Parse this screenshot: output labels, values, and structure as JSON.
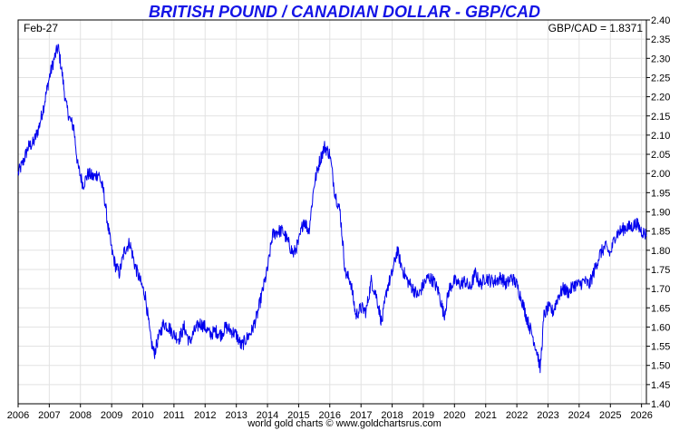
{
  "chart_data": {
    "type": "line",
    "title": "BRITISH POUND / CANADIAN DOLLAR - GBP/CAD",
    "date_label": "Feb-27",
    "current_value_label": "GBP/CAD = 1.8371",
    "xlabel": "",
    "ylabel": "",
    "x_tick_labels": [
      "2006",
      "2007",
      "2008",
      "2009",
      "2010",
      "2011",
      "2012",
      "2013",
      "2014",
      "2015",
      "2016",
      "2017",
      "2018",
      "2019",
      "2020",
      "2021",
      "2022",
      "2023",
      "2024",
      "2025",
      "2026"
    ],
    "y_tick_labels": [
      "1.40",
      "1.45",
      "1.50",
      "1.55",
      "1.60",
      "1.65",
      "1.70",
      "1.75",
      "1.80",
      "1.85",
      "1.90",
      "1.95",
      "2.00",
      "2.05",
      "2.10",
      "2.15",
      "2.20",
      "2.25",
      "2.30",
      "2.35",
      "2.40"
    ],
    "xlim": [
      "2006-01-01",
      "2026-02-27"
    ],
    "ylim": [
      1.4,
      2.4
    ],
    "grid": true,
    "line_color": "#0000ee",
    "series": [
      {
        "values": [
          [
            "2006-01-01",
            2.0
          ],
          [
            "2006-03-01",
            2.03
          ],
          [
            "2006-05-01",
            2.07
          ],
          [
            "2006-07-01",
            2.08
          ],
          [
            "2006-09-01",
            2.12
          ],
          [
            "2006-11-01",
            2.18
          ],
          [
            "2007-01-01",
            2.25
          ],
          [
            "2007-03-01",
            2.3
          ],
          [
            "2007-04-15",
            2.33
          ],
          [
            "2007-06-01",
            2.26
          ],
          [
            "2007-07-15",
            2.18
          ],
          [
            "2007-09-01",
            2.14
          ],
          [
            "2007-10-15",
            2.12
          ],
          [
            "2007-12-01",
            2.02
          ],
          [
            "2008-02-01",
            1.97
          ],
          [
            "2008-04-01",
            2.0
          ],
          [
            "2008-06-01",
            1.99
          ],
          [
            "2008-08-01",
            2.0
          ],
          [
            "2008-10-01",
            1.95
          ],
          [
            "2008-11-15",
            1.87
          ],
          [
            "2009-01-01",
            1.8
          ],
          [
            "2009-02-15",
            1.76
          ],
          [
            "2009-04-01",
            1.74
          ],
          [
            "2009-06-01",
            1.8
          ],
          [
            "2009-08-01",
            1.82
          ],
          [
            "2009-10-01",
            1.76
          ],
          [
            "2009-12-01",
            1.72
          ],
          [
            "2010-02-01",
            1.68
          ],
          [
            "2010-04-01",
            1.57
          ],
          [
            "2010-05-15",
            1.53
          ],
          [
            "2010-07-01",
            1.57
          ],
          [
            "2010-09-01",
            1.61
          ],
          [
            "2010-11-01",
            1.6
          ],
          [
            "2011-01-01",
            1.58
          ],
          [
            "2011-03-01",
            1.57
          ],
          [
            "2011-05-01",
            1.6
          ],
          [
            "2011-07-01",
            1.56
          ],
          [
            "2011-09-01",
            1.59
          ],
          [
            "2011-11-01",
            1.61
          ],
          [
            "2012-01-01",
            1.6
          ],
          [
            "2012-03-01",
            1.58
          ],
          [
            "2012-05-01",
            1.59
          ],
          [
            "2012-07-01",
            1.58
          ],
          [
            "2012-09-01",
            1.6
          ],
          [
            "2012-11-01",
            1.59
          ],
          [
            "2013-01-01",
            1.58
          ],
          [
            "2013-03-01",
            1.55
          ],
          [
            "2013-05-01",
            1.57
          ],
          [
            "2013-07-01",
            1.59
          ],
          [
            "2013-09-01",
            1.63
          ],
          [
            "2013-11-01",
            1.69
          ],
          [
            "2014-01-01",
            1.75
          ],
          [
            "2014-03-01",
            1.84
          ],
          [
            "2014-05-01",
            1.85
          ],
          [
            "2014-07-01",
            1.85
          ],
          [
            "2014-09-01",
            1.82
          ],
          [
            "2014-11-01",
            1.79
          ],
          [
            "2015-01-01",
            1.82
          ],
          [
            "2015-03-01",
            1.88
          ],
          [
            "2015-05-01",
            1.85
          ],
          [
            "2015-07-01",
            1.97
          ],
          [
            "2015-09-01",
            2.03
          ],
          [
            "2015-11-01",
            2.07
          ],
          [
            "2016-01-01",
            2.05
          ],
          [
            "2016-03-01",
            1.95
          ],
          [
            "2016-05-01",
            1.9
          ],
          [
            "2016-07-01",
            1.74
          ],
          [
            "2016-09-01",
            1.72
          ],
          [
            "2016-11-01",
            1.63
          ],
          [
            "2017-01-01",
            1.65
          ],
          [
            "2017-03-01",
            1.64
          ],
          [
            "2017-05-01",
            1.72
          ],
          [
            "2017-07-01",
            1.68
          ],
          [
            "2017-09-01",
            1.61
          ],
          [
            "2017-11-01",
            1.7
          ],
          [
            "2018-01-01",
            1.74
          ],
          [
            "2018-03-01",
            1.8
          ],
          [
            "2018-05-01",
            1.75
          ],
          [
            "2018-07-01",
            1.72
          ],
          [
            "2018-09-01",
            1.7
          ],
          [
            "2018-11-01",
            1.68
          ],
          [
            "2019-01-01",
            1.71
          ],
          [
            "2019-03-01",
            1.73
          ],
          [
            "2019-05-01",
            1.72
          ],
          [
            "2019-07-01",
            1.69
          ],
          [
            "2019-09-01",
            1.63
          ],
          [
            "2019-11-01",
            1.7
          ],
          [
            "2020-01-01",
            1.72
          ],
          [
            "2020-03-01",
            1.71
          ],
          [
            "2020-05-01",
            1.72
          ],
          [
            "2020-07-01",
            1.7
          ],
          [
            "2020-09-01",
            1.74
          ],
          [
            "2020-11-01",
            1.71
          ],
          [
            "2021-01-01",
            1.73
          ],
          [
            "2021-03-01",
            1.72
          ],
          [
            "2021-05-01",
            1.72
          ],
          [
            "2021-07-01",
            1.73
          ],
          [
            "2021-09-01",
            1.71
          ],
          [
            "2021-11-01",
            1.73
          ],
          [
            "2022-01-01",
            1.71
          ],
          [
            "2022-03-01",
            1.67
          ],
          [
            "2022-05-01",
            1.62
          ],
          [
            "2022-07-01",
            1.58
          ],
          [
            "2022-09-01",
            1.53
          ],
          [
            "2022-10-01",
            1.49
          ],
          [
            "2022-11-15",
            1.63
          ],
          [
            "2023-01-01",
            1.65
          ],
          [
            "2023-03-01",
            1.64
          ],
          [
            "2023-05-01",
            1.68
          ],
          [
            "2023-07-01",
            1.7
          ],
          [
            "2023-09-01",
            1.69
          ],
          [
            "2023-11-01",
            1.71
          ],
          [
            "2024-01-01",
            1.71
          ],
          [
            "2024-03-01",
            1.72
          ],
          [
            "2024-05-01",
            1.71
          ],
          [
            "2024-07-01",
            1.75
          ],
          [
            "2024-09-01",
            1.79
          ],
          [
            "2024-11-01",
            1.81
          ],
          [
            "2025-01-01",
            1.79
          ],
          [
            "2025-03-01",
            1.84
          ],
          [
            "2025-05-01",
            1.85
          ],
          [
            "2025-07-01",
            1.86
          ],
          [
            "2025-09-01",
            1.86
          ],
          [
            "2025-11-01",
            1.87
          ],
          [
            "2026-01-01",
            1.85
          ],
          [
            "2026-02-27",
            1.84
          ]
        ]
      }
    ]
  },
  "footer": {
    "credit": "world gold charts © www.goldchartsrus.com"
  }
}
